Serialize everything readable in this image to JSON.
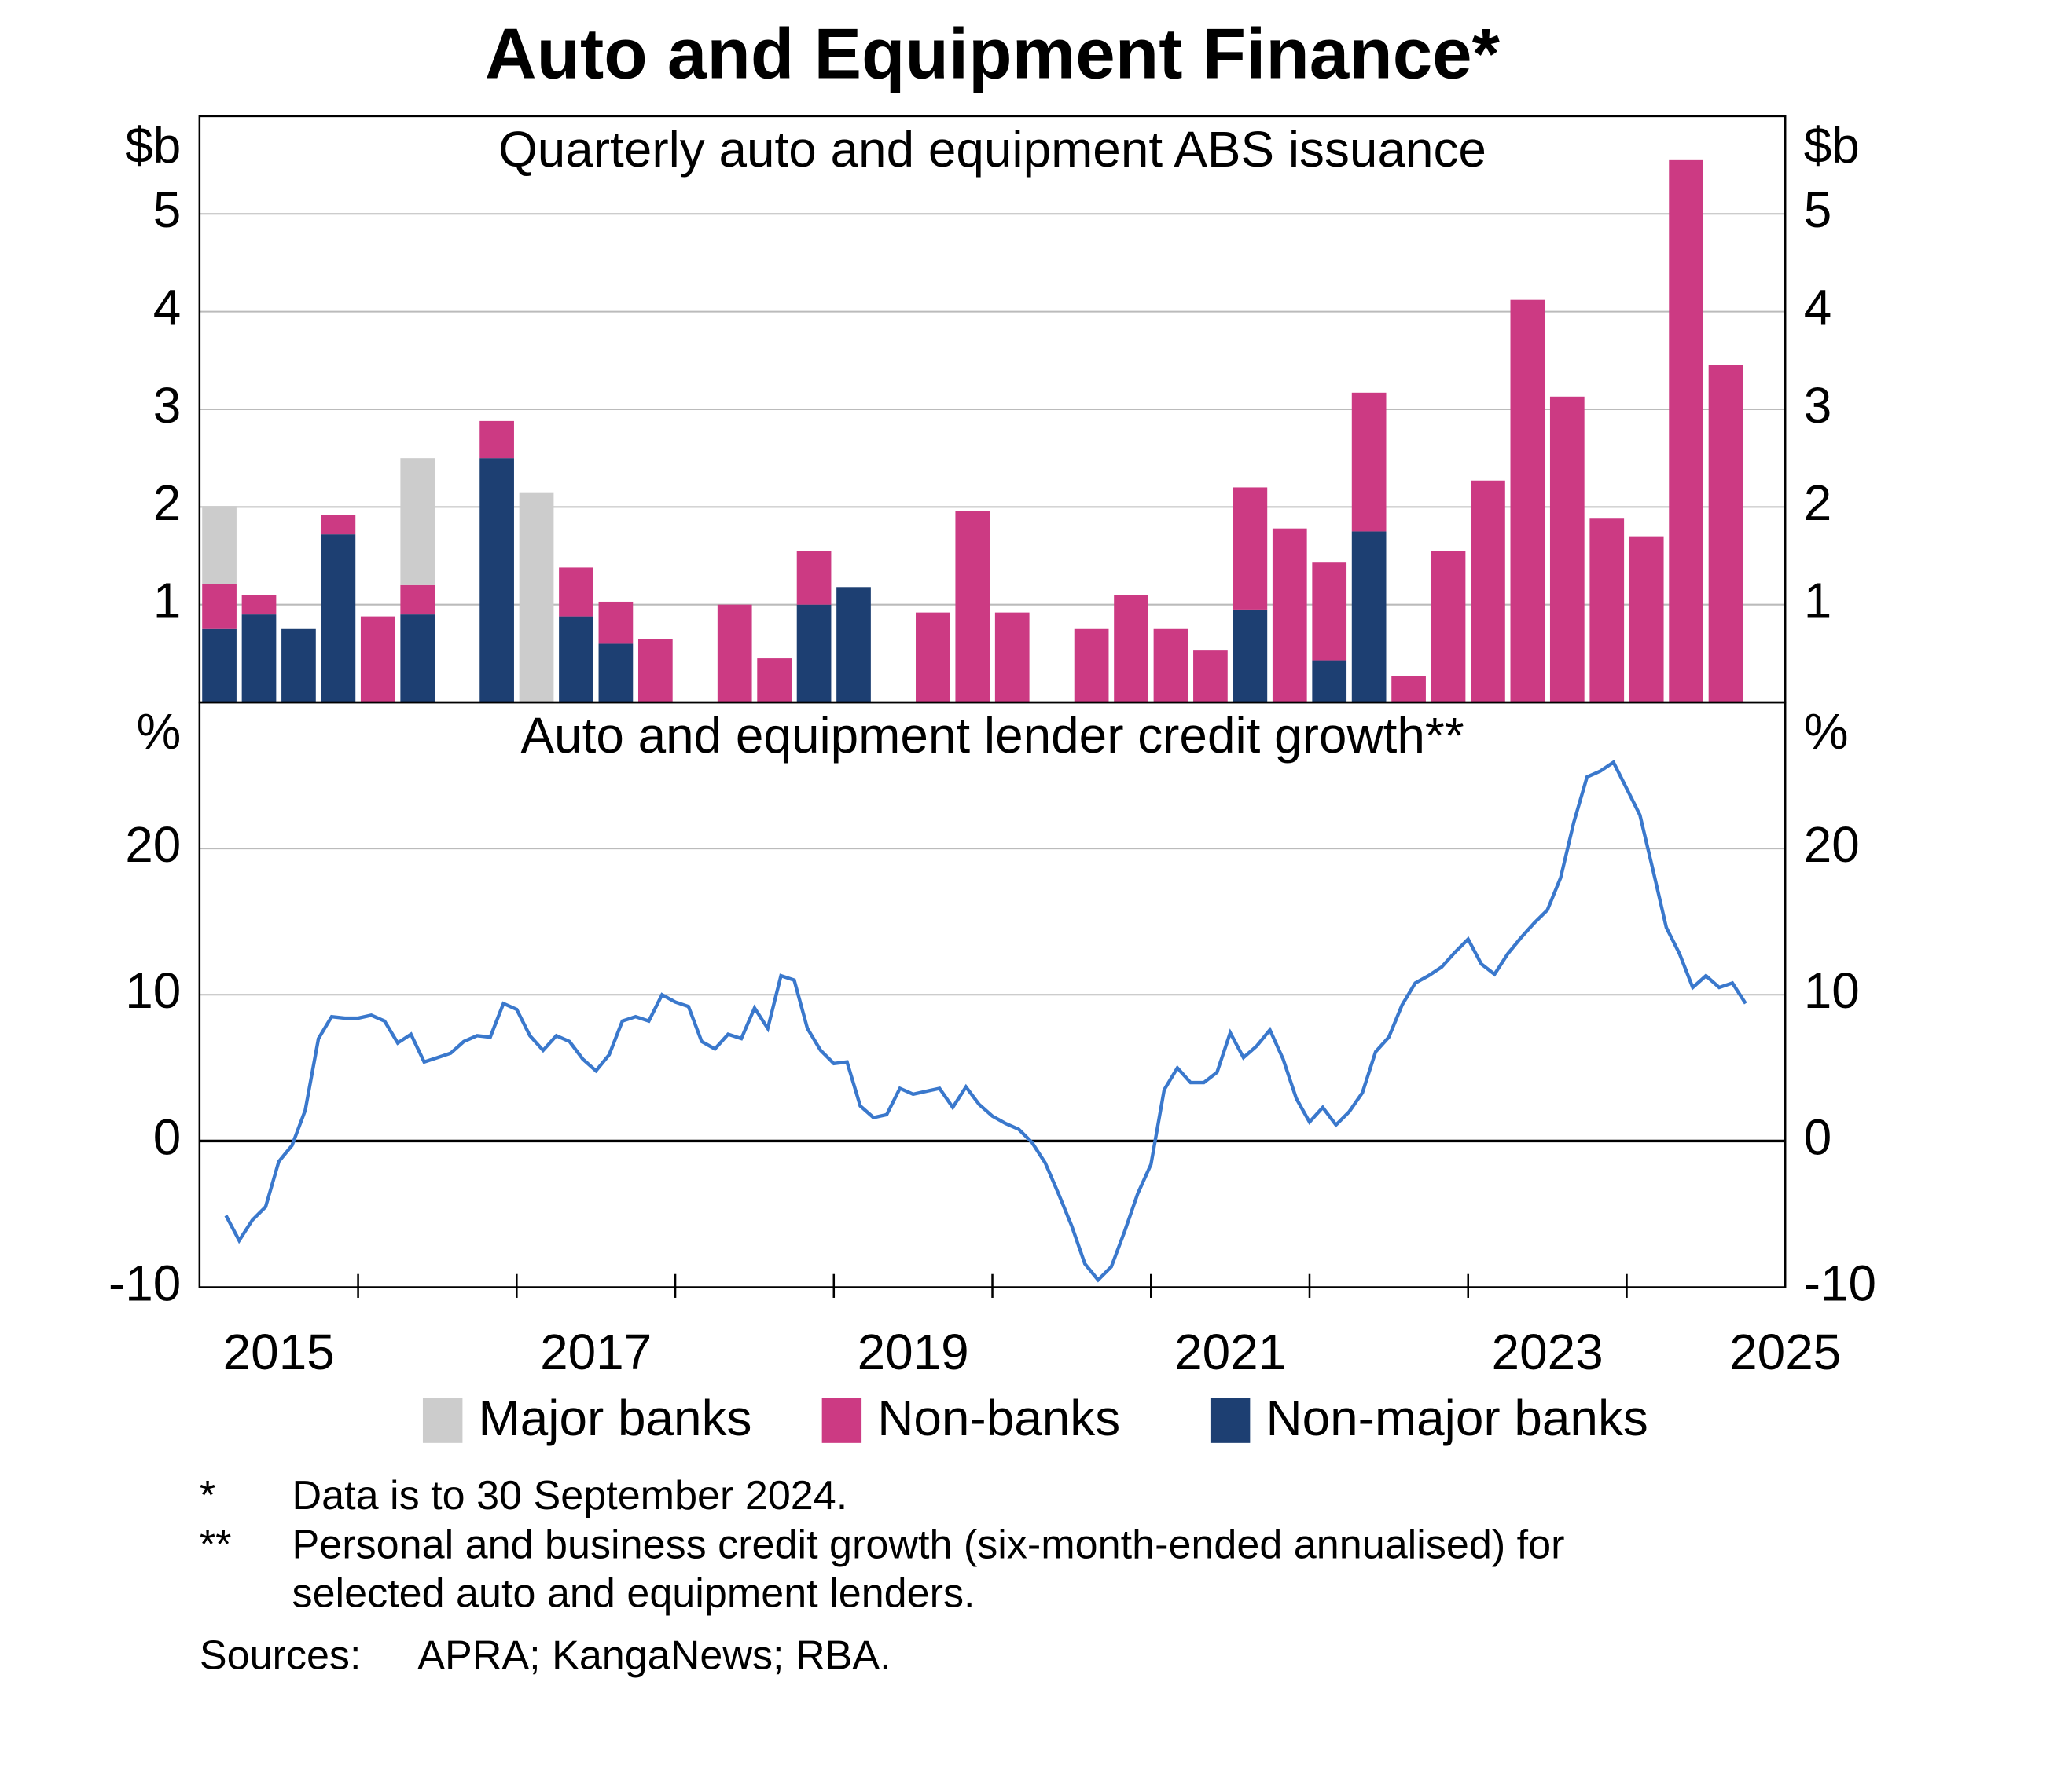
{
  "title": "Auto and Equipment Finance*",
  "chart_data": [
    {
      "type": "bar",
      "stacked": true,
      "subtitle": "Quarterly auto and equipment ABS issuance",
      "unit": "$b",
      "xlim": [
        2015,
        2025
      ],
      "ylim": [
        0,
        6
      ],
      "yticks": [
        1,
        2,
        3,
        4,
        5
      ],
      "grid": true,
      "x": [
        2015,
        2015.25,
        2015.5,
        2015.75,
        2016,
        2016.25,
        2016.5,
        2016.75,
        2017,
        2017.25,
        2017.5,
        2017.75,
        2018,
        2018.25,
        2018.5,
        2018.75,
        2019,
        2019.25,
        2019.5,
        2019.75,
        2020,
        2020.25,
        2020.5,
        2020.75,
        2021,
        2021.25,
        2021.5,
        2021.75,
        2022,
        2022.25,
        2022.5,
        2022.75,
        2023,
        2023.25,
        2023.5,
        2023.75,
        2024,
        2024.25,
        2024.5
      ],
      "series": [
        {
          "name": "Major banks",
          "color": "#cccccc",
          "values": [
            0.8,
            0,
            0,
            0,
            0,
            1.3,
            0,
            0,
            2.15,
            0,
            0,
            0,
            0,
            0,
            0,
            0,
            0,
            0,
            0,
            0,
            0,
            0,
            0,
            0,
            0,
            0,
            0,
            0,
            0,
            0,
            0,
            0,
            0,
            0,
            0,
            0,
            0,
            0,
            0
          ]
        },
        {
          "name": "Non-banks",
          "color": "#cc3a83",
          "values": [
            0.46,
            0.2,
            0,
            0.2,
            0.88,
            0.3,
            0,
            0.38,
            0,
            0.5,
            0.43,
            0.65,
            0,
            1.0,
            0.45,
            0.55,
            0,
            0,
            0.92,
            1.96,
            0.92,
            0,
            0.75,
            1.1,
            0.75,
            0.53,
            1.25,
            1.78,
            1.0,
            1.42,
            0.27,
            1.55,
            2.27,
            4.12,
            3.13,
            1.88,
            1.7,
            5.55,
            3.45
          ]
        },
        {
          "name": "Non-major banks",
          "color": "#1d3f72",
          "values": [
            0.75,
            0.9,
            0.75,
            1.72,
            0,
            0.9,
            0,
            2.5,
            0,
            0.88,
            0.6,
            0,
            0,
            0,
            0,
            1.0,
            1.18,
            0,
            0,
            0,
            0,
            0,
            0,
            0,
            0,
            0,
            0.95,
            0,
            0.43,
            1.75,
            0,
            0,
            0,
            0,
            0,
            0,
            0,
            0,
            0
          ]
        }
      ]
    },
    {
      "type": "line",
      "subtitle": "Auto and equipment lender credit growth**",
      "unit": "%",
      "xlim": [
        2015,
        2025
      ],
      "ylim": [
        -10,
        30
      ],
      "yticks": [
        -10,
        0,
        10,
        20
      ],
      "grid": true,
      "zero_line": true,
      "xticks": [
        2015,
        2017,
        2019,
        2021,
        2023,
        2025
      ],
      "minor_xticks": [
        2016,
        2017,
        2018,
        2019,
        2020,
        2021,
        2022,
        2023,
        2024
      ],
      "color": "#3a78cc",
      "x": [
        2015.167,
        2015.25,
        2015.333,
        2015.417,
        2015.5,
        2015.583,
        2015.667,
        2015.75,
        2015.833,
        2015.917,
        2016,
        2016.083,
        2016.167,
        2016.25,
        2016.333,
        2016.417,
        2016.5,
        2016.583,
        2016.667,
        2016.75,
        2016.833,
        2016.917,
        2017,
        2017.083,
        2017.167,
        2017.25,
        2017.333,
        2017.417,
        2017.5,
        2017.583,
        2017.667,
        2017.75,
        2017.833,
        2017.917,
        2018,
        2018.083,
        2018.167,
        2018.25,
        2018.333,
        2018.417,
        2018.5,
        2018.583,
        2018.667,
        2018.75,
        2018.833,
        2018.917,
        2019,
        2019.083,
        2019.167,
        2019.25,
        2019.333,
        2019.417,
        2019.5,
        2019.583,
        2019.667,
        2019.75,
        2019.833,
        2019.917,
        2020,
        2020.083,
        2020.167,
        2020.25,
        2020.333,
        2020.417,
        2020.5,
        2020.583,
        2020.667,
        2020.75,
        2020.833,
        2020.917,
        2021,
        2021.083,
        2021.167,
        2021.25,
        2021.333,
        2021.417,
        2021.5,
        2021.583,
        2021.667,
        2021.75,
        2021.833,
        2021.917,
        2022,
        2022.083,
        2022.167,
        2022.25,
        2022.333,
        2022.417,
        2022.5,
        2022.583,
        2022.667,
        2022.75,
        2022.833,
        2022.917,
        2023,
        2023.083,
        2023.167,
        2023.25,
        2023.333,
        2023.417,
        2023.5,
        2023.583,
        2023.667,
        2023.75,
        2023.833,
        2023.917,
        2024,
        2024.083,
        2024.167,
        2024.25,
        2024.333,
        2024.417,
        2024.5,
        2024.583,
        2024.667,
        2024.75
      ],
      "values": [
        -5.1,
        -6.8,
        -5.4,
        -4.5,
        -1.4,
        -0.3,
        2.1,
        7.0,
        8.5,
        8.4,
        8.4,
        8.6,
        8.2,
        6.7,
        7.3,
        5.4,
        5.7,
        6.0,
        6.8,
        7.2,
        7.1,
        9.4,
        9.0,
        7.2,
        6.2,
        7.2,
        6.8,
        5.6,
        4.8,
        5.9,
        8.2,
        8.5,
        8.2,
        10.0,
        9.5,
        9.2,
        6.8,
        6.3,
        7.3,
        7.0,
        9.1,
        7.7,
        11.3,
        11.0,
        7.7,
        6.2,
        5.3,
        5.4,
        2.4,
        1.6,
        1.8,
        3.6,
        3.2,
        3.4,
        3.6,
        2.3,
        3.7,
        2.5,
        1.7,
        1.2,
        0.8,
        -0.1,
        -1.5,
        -3.6,
        -5.8,
        -8.4,
        -9.5,
        -8.6,
        -6.2,
        -3.6,
        -1.6,
        3.5,
        5.0,
        4.0,
        4.0,
        4.7,
        7.4,
        5.7,
        6.5,
        7.6,
        5.6,
        2.9,
        1.3,
        2.3,
        1.1,
        2.0,
        3.3,
        6.1,
        7.1,
        9.3,
        10.8,
        11.3,
        11.9,
        12.9,
        13.8,
        12.1,
        11.4,
        12.8,
        13.9,
        14.9,
        15.8,
        18.0,
        21.8,
        24.9,
        25.3,
        25.9,
        24.1,
        22.3,
        18.5,
        14.6,
        12.8,
        10.5,
        11.3,
        10.5,
        10.8,
        9.4
      ]
    }
  ],
  "notes": [
    {
      "mark": "*",
      "lines": [
        "Data is to 30 September 2024."
      ]
    },
    {
      "mark": "**",
      "lines": [
        "Personal and business credit growth (six-month-ended annualised) for",
        "selected auto and equipment lenders."
      ]
    }
  ],
  "sources": {
    "label": "Sources:",
    "text": "APRA; KangaNews; RBA."
  }
}
